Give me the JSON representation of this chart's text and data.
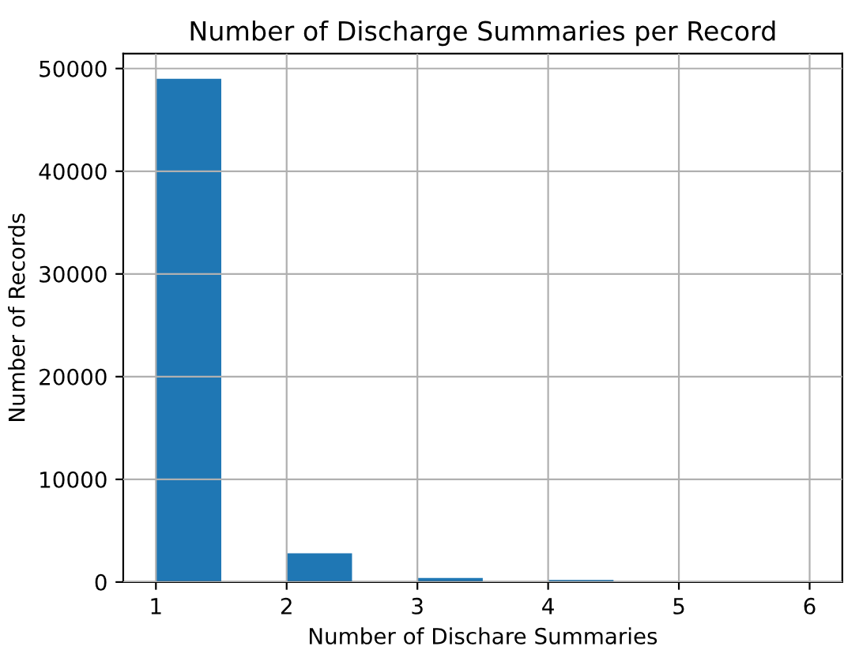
{
  "chart_data": {
    "type": "histogram",
    "title": "Number of Discharge Summaries per Record",
    "xlabel": "Number of Dischare Summaries",
    "ylabel": "Number of Records",
    "bins": [
      1,
      1.5,
      2,
      2.5,
      3,
      3.5,
      4,
      4.5,
      5,
      5.5,
      6
    ],
    "values": [
      49000,
      0,
      2800,
      0,
      400,
      0,
      200,
      0,
      0,
      0
    ],
    "color": "#1f77b4",
    "xlim": [
      0.75,
      6.25
    ],
    "xticks": [
      1,
      2,
      3,
      4,
      5,
      6
    ],
    "ylim": [
      0,
      51450
    ],
    "yticks": [
      0,
      10000,
      20000,
      30000,
      40000,
      50000
    ],
    "grid": true
  }
}
